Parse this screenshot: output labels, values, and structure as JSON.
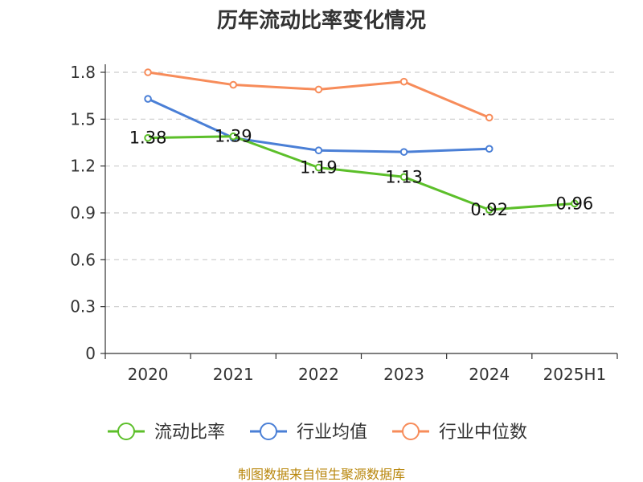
{
  "chart_data": {
    "type": "line",
    "title": "历年流动比率变化情况",
    "categories": [
      "2020",
      "2021",
      "2022",
      "2023",
      "2024",
      "2025H1"
    ],
    "ylim": [
      0,
      1.8
    ],
    "yticks": [
      "0",
      "0.3",
      "0.6",
      "0.9",
      "1.2",
      "1.5",
      "1.8"
    ],
    "grid": true,
    "legend_position": "bottom",
    "series": [
      {
        "name": "流动比率",
        "color": "#5cbf2a",
        "values": [
          1.38,
          1.39,
          1.19,
          1.13,
          0.92,
          0.96
        ],
        "labels": [
          "1.38",
          "1.39",
          "1.19",
          "1.13",
          "0.92",
          "0.96"
        ]
      },
      {
        "name": "行业均值",
        "color": "#4a7fd6",
        "values": [
          1.63,
          1.38,
          1.3,
          1.29,
          1.31,
          null
        ]
      },
      {
        "name": "行业中位数",
        "color": "#f78c5a",
        "values": [
          1.8,
          1.72,
          1.69,
          1.74,
          1.51,
          null
        ]
      }
    ]
  },
  "footer": {
    "source": "制图数据来自恒生聚源数据库"
  }
}
